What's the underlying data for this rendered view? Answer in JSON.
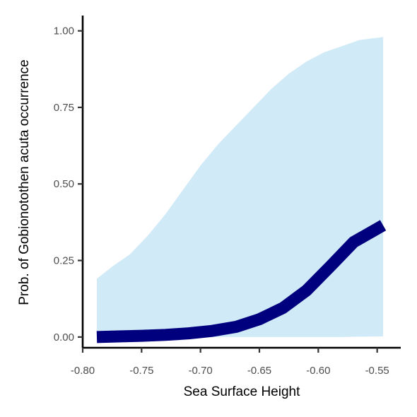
{
  "chart_data": {
    "type": "line",
    "xlabel": "Sea Surface Height",
    "ylabel": "Prob. of  Gobionotothen acuta  occurrence",
    "xlim": [
      -0.8,
      -0.53
    ],
    "ylim": [
      -0.035,
      1.05
    ],
    "x_ticks": [
      -0.8,
      -0.75,
      -0.7,
      -0.65,
      -0.6,
      -0.55
    ],
    "x_tick_labels": [
      "-0.80",
      "-0.75",
      "-0.70",
      "-0.65",
      "-0.60",
      "-0.55"
    ],
    "y_ticks": [
      0,
      0.25,
      0.5,
      0.75,
      1.0
    ],
    "y_tick_labels": [
      "0.00",
      "0.25",
      "0.50",
      "0.75",
      "1.00"
    ],
    "grid": false,
    "series": [
      {
        "kind": "line",
        "color": "#00007f",
        "x": [
          -0.788,
          -0.77,
          -0.75,
          -0.73,
          -0.71,
          -0.69,
          -0.67,
          -0.65,
          -0.63,
          -0.61,
          -0.59,
          -0.57,
          -0.545
        ],
        "y": [
          0.0,
          0.002,
          0.004,
          0.007,
          0.012,
          0.02,
          0.033,
          0.058,
          0.095,
          0.152,
          0.23,
          0.31,
          0.365
        ]
      },
      {
        "kind": "band",
        "color": "#d0eaf7",
        "x": [
          -0.788,
          -0.775,
          -0.76,
          -0.745,
          -0.73,
          -0.715,
          -0.7,
          -0.685,
          -0.67,
          -0.655,
          -0.64,
          -0.625,
          -0.61,
          -0.595,
          -0.58,
          -0.565,
          -0.545
        ],
        "lower": [
          0.0,
          0.0,
          0.0,
          0.0,
          0.0,
          0.0,
          0.0,
          0.0,
          0.0,
          0.0,
          0.0,
          0.0,
          0.0,
          0.0,
          0.0,
          0.001,
          0.002
        ],
        "upper": [
          0.19,
          0.23,
          0.27,
          0.33,
          0.4,
          0.48,
          0.56,
          0.63,
          0.69,
          0.75,
          0.81,
          0.86,
          0.9,
          0.93,
          0.95,
          0.97,
          0.98
        ]
      }
    ]
  }
}
